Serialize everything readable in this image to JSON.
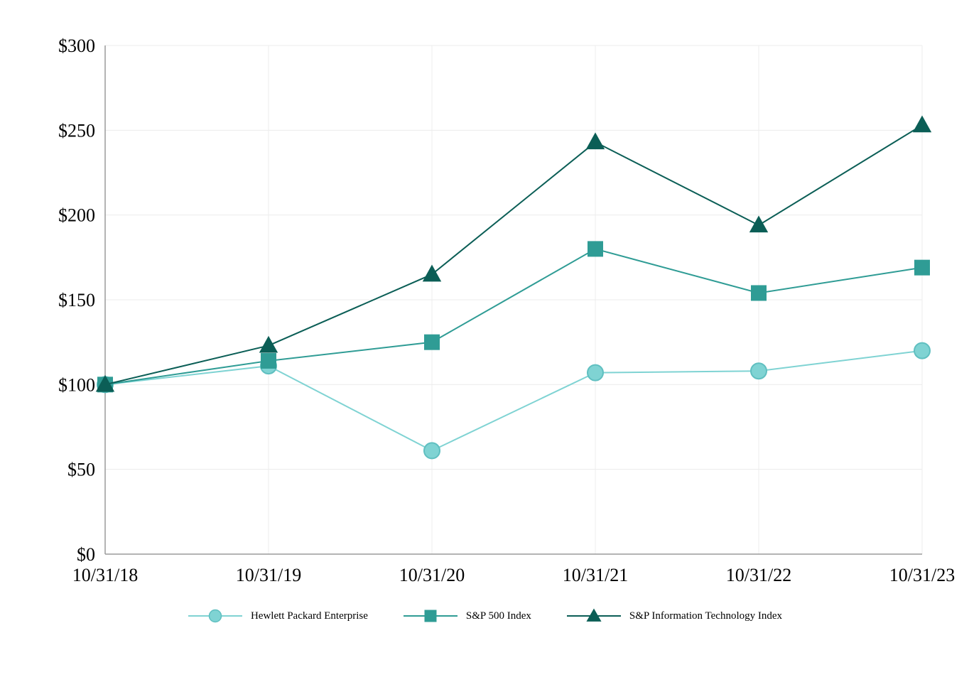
{
  "chart_data": {
    "type": "line",
    "title": "",
    "xlabel": "",
    "ylabel": "",
    "categories": [
      "10/31/18",
      "10/31/19",
      "10/31/20",
      "10/31/21",
      "10/31/22",
      "10/31/23"
    ],
    "series": [
      {
        "name": "Hewlett Packard Enterprise",
        "marker": "circle",
        "color": "#7FD3D3",
        "marker_stroke": "#5FBFC0",
        "values": [
          100,
          111,
          61,
          107,
          108,
          120
        ]
      },
      {
        "name": "S&P 500 Index",
        "marker": "square",
        "color": "#2F9C95",
        "marker_stroke": "#2F9C95",
        "values": [
          100,
          114,
          125,
          180,
          154,
          169
        ]
      },
      {
        "name": "S&P Information Technology Index",
        "marker": "triangle",
        "color": "#0B5E56",
        "marker_stroke": "#0B5E56",
        "values": [
          100,
          123,
          165,
          243,
          194,
          253
        ]
      }
    ],
    "ylim": [
      0,
      300
    ],
    "ytick_interval": 50,
    "ytick_prefix": "$",
    "grid": true,
    "legend_position": "bottom",
    "axis_color": "#9a9a9a",
    "grid_color": "#ececec",
    "label_color": "#000000"
  }
}
